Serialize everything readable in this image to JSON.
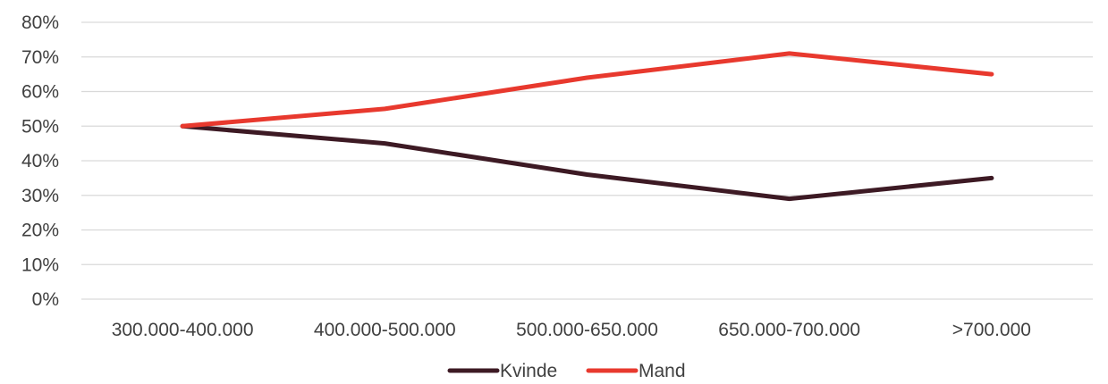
{
  "chart_data": {
    "type": "line",
    "categories": [
      "300.000-400.000",
      "400.000-500.000",
      "500.000-650.000",
      "650.000-700.000",
      ">700.000"
    ],
    "series": [
      {
        "name": "Kvinde",
        "values": [
          50,
          45,
          36,
          29,
          35
        ],
        "color": "#3d1a24"
      },
      {
        "name": "Mand",
        "values": [
          50,
          55,
          64,
          71,
          65
        ],
        "color": "#e8392e"
      }
    ],
    "yticks": [
      "0%",
      "10%",
      "20%",
      "30%",
      "40%",
      "50%",
      "60%",
      "70%",
      "80%"
    ],
    "ylim": [
      0,
      80
    ],
    "y_unit": "%",
    "grid": true,
    "legend_position": "bottom"
  }
}
